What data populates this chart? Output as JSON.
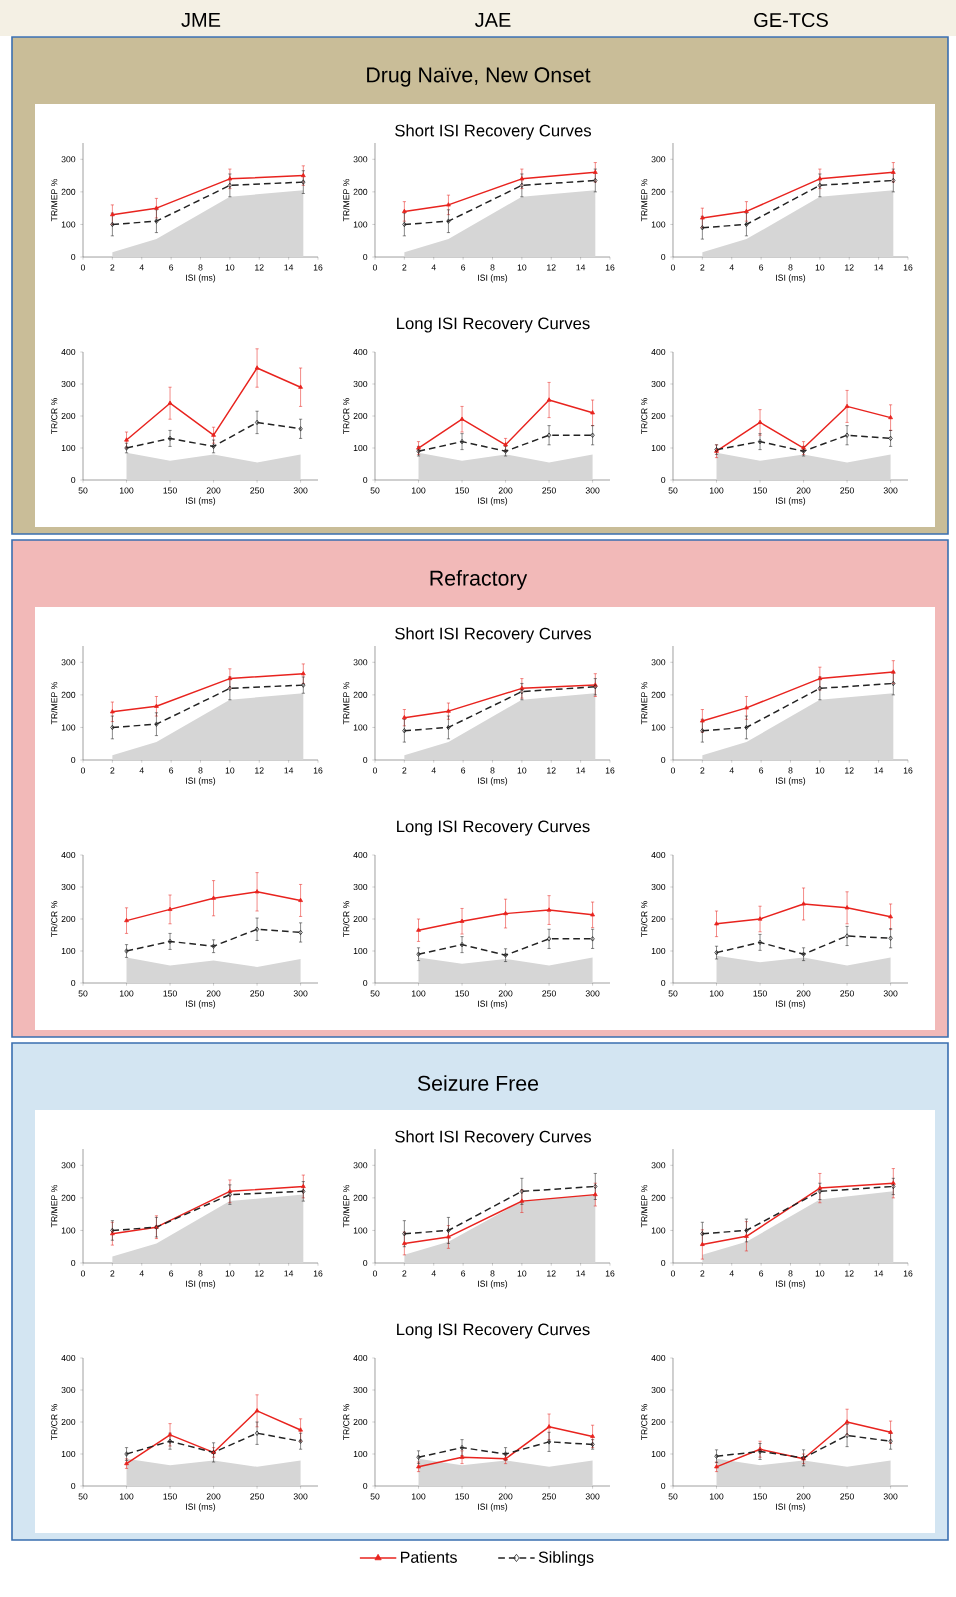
{
  "chart_data": [
    {
      "type": "line",
      "annotations": [
        "JME"
      ],
      "x": [
        2,
        5,
        10,
        15
      ],
      "xlim": [
        0,
        16
      ],
      "xticks": [
        0,
        2,
        4,
        6,
        8,
        10,
        12,
        14,
        16
      ],
      "ylim": [
        0,
        350
      ],
      "yticks": [
        0,
        100,
        200,
        300
      ],
      "xlabel": "ISI (ms)",
      "ylabel": "TR/MEP %",
      "series": [
        {
          "type": "area",
          "color": "#d6d6d6",
          "values": [
            15,
            55,
            185,
            205
          ]
        },
        {
          "color": "#e8231e",
          "marker": "triangle",
          "line_style": "solid",
          "values": [
            130,
            150,
            240,
            250
          ],
          "errors": [
            30,
            30,
            30,
            30
          ]
        },
        {
          "color": "#222222",
          "marker": "diamond",
          "line_style": "dashed",
          "values": [
            100,
            110,
            220,
            230
          ],
          "errors": [
            35,
            35,
            35,
            35
          ]
        }
      ]
    },
    {
      "type": "line",
      "title": "Short ISI Recovery Curves",
      "annotations": [
        "JAE",
        "Drug Naïve, New Onset"
      ],
      "x": [
        2,
        5,
        10,
        15
      ],
      "xlim": [
        0,
        16
      ],
      "xticks": [
        0,
        2,
        4,
        6,
        8,
        10,
        12,
        14,
        16
      ],
      "ylim": [
        0,
        350
      ],
      "yticks": [
        0,
        100,
        200,
        300
      ],
      "xlabel": "ISI (ms)",
      "ylabel": "TR/MEP %",
      "series": [
        {
          "type": "area",
          "color": "#d6d6d6",
          "values": [
            15,
            55,
            185,
            205
          ]
        },
        {
          "color": "#e8231e",
          "marker": "triangle",
          "line_style": "solid",
          "values": [
            140,
            160,
            240,
            260
          ],
          "errors": [
            30,
            30,
            30,
            30
          ]
        },
        {
          "color": "#222222",
          "marker": "diamond",
          "line_style": "dashed",
          "values": [
            100,
            110,
            220,
            235
          ],
          "errors": [
            35,
            35,
            35,
            35
          ]
        }
      ]
    },
    {
      "type": "line",
      "annotations": [
        "GE-TCS"
      ],
      "x": [
        2,
        5,
        10,
        15
      ],
      "xlim": [
        0,
        16
      ],
      "xticks": [
        0,
        2,
        4,
        6,
        8,
        10,
        12,
        14,
        16
      ],
      "ylim": [
        0,
        350
      ],
      "yticks": [
        0,
        100,
        200,
        300
      ],
      "xlabel": "ISI (ms)",
      "ylabel": "TR/MEP %",
      "series": [
        {
          "type": "area",
          "color": "#d6d6d6",
          "values": [
            15,
            55,
            185,
            205
          ]
        },
        {
          "color": "#e8231e",
          "marker": "triangle",
          "line_style": "solid",
          "values": [
            120,
            140,
            240,
            260
          ],
          "errors": [
            30,
            30,
            30,
            30
          ]
        },
        {
          "color": "#222222",
          "marker": "diamond",
          "line_style": "dashed",
          "values": [
            90,
            100,
            220,
            235
          ],
          "errors": [
            35,
            35,
            35,
            35
          ]
        }
      ]
    },
    {
      "type": "line",
      "x": [
        100,
        150,
        200,
        250,
        300
      ],
      "xlim": [
        50,
        320
      ],
      "xticks": [
        50,
        100,
        150,
        200,
        250,
        300
      ],
      "ylim": [
        0,
        400
      ],
      "yticks": [
        0,
        100,
        200,
        300,
        400
      ],
      "xlabel": "ISI (ms)",
      "ylabel": "TR/CR %",
      "series": [
        {
          "type": "area",
          "color": "#d6d6d6",
          "values": [
            85,
            60,
            80,
            55,
            80
          ]
        },
        {
          "color": "#e8231e",
          "marker": "triangle",
          "line_style": "solid",
          "values": [
            125,
            240,
            140,
            350,
            290
          ],
          "errors": [
            25,
            50,
            25,
            60,
            60
          ]
        },
        {
          "color": "#222222",
          "marker": "diamond",
          "line_style": "dashed",
          "values": [
            100,
            130,
            105,
            180,
            160
          ],
          "errors": [
            15,
            25,
            20,
            35,
            30
          ]
        }
      ]
    },
    {
      "type": "line",
      "title": "Long ISI Recovery Curves",
      "x": [
        100,
        150,
        200,
        250,
        300
      ],
      "xlim": [
        50,
        320
      ],
      "xticks": [
        50,
        100,
        150,
        200,
        250,
        300
      ],
      "ylim": [
        0,
        400
      ],
      "yticks": [
        0,
        100,
        200,
        300,
        400
      ],
      "xlabel": "ISI (ms)",
      "ylabel": "TR/CR %",
      "series": [
        {
          "type": "area",
          "color": "#d6d6d6",
          "values": [
            85,
            60,
            80,
            55,
            80
          ]
        },
        {
          "color": "#e8231e",
          "marker": "triangle",
          "line_style": "solid",
          "values": [
            100,
            190,
            110,
            250,
            210
          ],
          "errors": [
            20,
            40,
            20,
            55,
            40
          ]
        },
        {
          "color": "#222222",
          "marker": "diamond",
          "line_style": "dashed",
          "values": [
            90,
            120,
            90,
            140,
            140
          ],
          "errors": [
            15,
            25,
            15,
            30,
            30
          ]
        }
      ]
    },
    {
      "type": "line",
      "x": [
        100,
        150,
        200,
        250,
        300
      ],
      "xlim": [
        50,
        320
      ],
      "xticks": [
        50,
        100,
        150,
        200,
        250,
        300
      ],
      "ylim": [
        0,
        400
      ],
      "yticks": [
        0,
        100,
        200,
        300,
        400
      ],
      "xlabel": "ISI (ms)",
      "ylabel": "TR/CR %",
      "series": [
        {
          "type": "area",
          "color": "#d6d6d6",
          "values": [
            85,
            60,
            80,
            55,
            80
          ]
        },
        {
          "color": "#e8231e",
          "marker": "triangle",
          "line_style": "solid",
          "values": [
            90,
            180,
            100,
            230,
            195
          ],
          "errors": [
            20,
            40,
            20,
            50,
            40
          ]
        },
        {
          "color": "#222222",
          "marker": "diamond",
          "line_style": "dashed",
          "values": [
            95,
            120,
            90,
            140,
            130
          ],
          "errors": [
            15,
            25,
            15,
            30,
            25
          ]
        }
      ]
    },
    {
      "type": "line",
      "x": [
        2,
        5,
        10,
        15
      ],
      "xlim": [
        0,
        16
      ],
      "xticks": [
        0,
        2,
        4,
        6,
        8,
        10,
        12,
        14,
        16
      ],
      "ylim": [
        0,
        350
      ],
      "yticks": [
        0,
        100,
        200,
        300
      ],
      "xlabel": "ISI (ms)",
      "ylabel": "TR/MEP %",
      "series": [
        {
          "type": "area",
          "color": "#d6d6d6",
          "values": [
            15,
            55,
            185,
            205
          ]
        },
        {
          "color": "#e8231e",
          "marker": "triangle",
          "line_style": "solid",
          "values": [
            148,
            165,
            250,
            265
          ],
          "errors": [
            30,
            30,
            30,
            30
          ]
        },
        {
          "color": "#222222",
          "marker": "diamond",
          "line_style": "dashed",
          "values": [
            100,
            110,
            220,
            230
          ],
          "errors": [
            35,
            35,
            35,
            25
          ]
        }
      ]
    },
    {
      "type": "line",
      "title": "Short ISI Recovery Curves",
      "annotations": [
        "Refractory"
      ],
      "x": [
        2,
        5,
        10,
        15
      ],
      "xlim": [
        0,
        16
      ],
      "xticks": [
        0,
        2,
        4,
        6,
        8,
        10,
        12,
        14,
        16
      ],
      "ylim": [
        0,
        350
      ],
      "yticks": [
        0,
        100,
        200,
        300
      ],
      "xlabel": "ISI (ms)",
      "ylabel": "TR/MEP %",
      "series": [
        {
          "type": "area",
          "color": "#d6d6d6",
          "values": [
            15,
            55,
            185,
            205
          ]
        },
        {
          "color": "#e8231e",
          "marker": "triangle",
          "line_style": "solid",
          "values": [
            130,
            150,
            220,
            230
          ],
          "errors": [
            25,
            25,
            30,
            35
          ]
        },
        {
          "color": "#222222",
          "marker": "diamond",
          "line_style": "dashed",
          "values": [
            90,
            100,
            210,
            225
          ],
          "errors": [
            35,
            35,
            25,
            25
          ]
        }
      ]
    },
    {
      "type": "line",
      "x": [
        2,
        5,
        10,
        15
      ],
      "xlim": [
        0,
        16
      ],
      "xticks": [
        0,
        2,
        4,
        6,
        8,
        10,
        12,
        14,
        16
      ],
      "ylim": [
        0,
        350
      ],
      "yticks": [
        0,
        100,
        200,
        300
      ],
      "xlabel": "ISI (ms)",
      "ylabel": "TR/MEP %",
      "series": [
        {
          "type": "area",
          "color": "#d6d6d6",
          "values": [
            15,
            55,
            185,
            205
          ]
        },
        {
          "color": "#e8231e",
          "marker": "triangle",
          "line_style": "solid",
          "values": [
            120,
            160,
            250,
            270
          ],
          "errors": [
            35,
            35,
            35,
            35
          ]
        },
        {
          "color": "#222222",
          "marker": "diamond",
          "line_style": "dashed",
          "values": [
            90,
            100,
            220,
            235
          ],
          "errors": [
            35,
            35,
            35,
            35
          ]
        }
      ]
    },
    {
      "type": "line",
      "x": [
        100,
        150,
        200,
        250,
        300
      ],
      "xlim": [
        50,
        320
      ],
      "xticks": [
        50,
        100,
        150,
        200,
        250,
        300
      ],
      "ylim": [
        0,
        400
      ],
      "yticks": [
        0,
        100,
        200,
        300,
        400
      ],
      "xlabel": "ISI (ms)",
      "ylabel": "TR/CR %",
      "series": [
        {
          "type": "area",
          "color": "#d6d6d6",
          "values": [
            80,
            55,
            70,
            50,
            75
          ]
        },
        {
          "color": "#e8231e",
          "marker": "triangle",
          "line_style": "solid",
          "values": [
            195,
            230,
            265,
            285,
            258
          ],
          "errors": [
            40,
            45,
            55,
            60,
            50
          ]
        },
        {
          "color": "#222222",
          "marker": "diamond",
          "line_style": "dashed",
          "values": [
            100,
            130,
            115,
            168,
            158
          ],
          "errors": [
            20,
            25,
            20,
            35,
            30
          ]
        }
      ]
    },
    {
      "type": "line",
      "title": "Long ISI Recovery Curves",
      "x": [
        100,
        150,
        200,
        250,
        300
      ],
      "xlim": [
        50,
        320
      ],
      "xticks": [
        50,
        100,
        150,
        200,
        250,
        300
      ],
      "ylim": [
        0,
        400
      ],
      "yticks": [
        0,
        100,
        200,
        300,
        400
      ],
      "xlabel": "ISI (ms)",
      "ylabel": "TR/CR %",
      "series": [
        {
          "type": "area",
          "color": "#d6d6d6",
          "values": [
            80,
            60,
            75,
            55,
            80
          ]
        },
        {
          "color": "#e8231e",
          "marker": "triangle",
          "line_style": "solid",
          "values": [
            165,
            193,
            217,
            228,
            213
          ],
          "errors": [
            35,
            40,
            45,
            45,
            40
          ]
        },
        {
          "color": "#222222",
          "marker": "diamond",
          "line_style": "dashed",
          "values": [
            90,
            120,
            87,
            138,
            138
          ],
          "errors": [
            20,
            25,
            20,
            30,
            30
          ]
        }
      ]
    },
    {
      "type": "line",
      "x": [
        100,
        150,
        200,
        250,
        300
      ],
      "xlim": [
        50,
        320
      ],
      "xticks": [
        50,
        100,
        150,
        200,
        250,
        300
      ],
      "ylim": [
        0,
        400
      ],
      "yticks": [
        0,
        100,
        200,
        300,
        400
      ],
      "xlabel": "ISI (ms)",
      "ylabel": "TR/CR %",
      "series": [
        {
          "type": "area",
          "color": "#d6d6d6",
          "values": [
            85,
            65,
            80,
            55,
            80
          ]
        },
        {
          "color": "#e8231e",
          "marker": "triangle",
          "line_style": "solid",
          "values": [
            185,
            200,
            247,
            235,
            207
          ],
          "errors": [
            40,
            40,
            50,
            50,
            40
          ]
        },
        {
          "color": "#222222",
          "marker": "diamond",
          "line_style": "dashed",
          "values": [
            95,
            127,
            90,
            147,
            140
          ],
          "errors": [
            20,
            25,
            20,
            30,
            30
          ]
        }
      ]
    },
    {
      "type": "line",
      "x": [
        2,
        5,
        10,
        15
      ],
      "xlim": [
        0,
        16
      ],
      "xticks": [
        0,
        2,
        4,
        6,
        8,
        10,
        12,
        14,
        16
      ],
      "ylim": [
        0,
        350
      ],
      "yticks": [
        0,
        100,
        200,
        300
      ],
      "xlabel": "ISI (ms)",
      "ylabel": "TR/MEP %",
      "series": [
        {
          "type": "area",
          "color": "#d6d6d6",
          "values": [
            20,
            60,
            190,
            210
          ]
        },
        {
          "color": "#e8231e",
          "marker": "triangle",
          "line_style": "solid",
          "values": [
            90,
            110,
            220,
            235
          ],
          "errors": [
            35,
            35,
            35,
            35
          ]
        },
        {
          "color": "#222222",
          "marker": "diamond",
          "line_style": "dashed",
          "values": [
            100,
            110,
            210,
            220
          ],
          "errors": [
            30,
            30,
            30,
            30
          ]
        }
      ]
    },
    {
      "type": "line",
      "title": "Short ISI Recovery Curves",
      "annotations": [
        "Seizure Free"
      ],
      "x": [
        2,
        5,
        10,
        15
      ],
      "xlim": [
        0,
        16
      ],
      "xticks": [
        0,
        2,
        4,
        6,
        8,
        10,
        12,
        14,
        16
      ],
      "ylim": [
        0,
        350
      ],
      "yticks": [
        0,
        100,
        200,
        300
      ],
      "xlabel": "ISI (ms)",
      "ylabel": "TR/MEP %",
      "series": [
        {
          "type": "area",
          "color": "#d6d6d6",
          "values": [
            25,
            65,
            190,
            210
          ]
        },
        {
          "color": "#e8231e",
          "marker": "triangle",
          "line_style": "solid",
          "values": [
            60,
            80,
            190,
            210
          ],
          "errors": [
            35,
            35,
            35,
            35
          ]
        },
        {
          "color": "#222222",
          "marker": "diamond",
          "line_style": "dashed",
          "values": [
            90,
            100,
            220,
            235
          ],
          "errors": [
            40,
            40,
            40,
            40
          ]
        }
      ]
    },
    {
      "type": "line",
      "x": [
        2,
        5,
        10,
        15
      ],
      "xlim": [
        0,
        16
      ],
      "xticks": [
        0,
        2,
        4,
        6,
        8,
        10,
        12,
        14,
        16
      ],
      "ylim": [
        0,
        350
      ],
      "yticks": [
        0,
        100,
        200,
        300
      ],
      "xlabel": "ISI (ms)",
      "ylabel": "TR/MEP %",
      "series": [
        {
          "type": "area",
          "color": "#d6d6d6",
          "values": [
            25,
            65,
            195,
            220
          ]
        },
        {
          "color": "#e8231e",
          "marker": "triangle",
          "line_style": "solid",
          "values": [
            57,
            82,
            230,
            245
          ],
          "errors": [
            45,
            45,
            45,
            45
          ]
        },
        {
          "color": "#222222",
          "marker": "diamond",
          "line_style": "dashed",
          "values": [
            90,
            100,
            220,
            235
          ],
          "errors": [
            35,
            35,
            25,
            25
          ]
        }
      ]
    },
    {
      "type": "line",
      "x": [
        100,
        150,
        200,
        250,
        300
      ],
      "xlim": [
        50,
        320
      ],
      "xticks": [
        50,
        100,
        150,
        200,
        250,
        300
      ],
      "ylim": [
        0,
        400
      ],
      "yticks": [
        0,
        100,
        200,
        300,
        400
      ],
      "xlabel": "ISI (ms)",
      "ylabel": "TR/CR %",
      "series": [
        {
          "type": "area",
          "color": "#d6d6d6",
          "values": [
            85,
            65,
            80,
            60,
            80
          ]
        },
        {
          "color": "#e8231e",
          "marker": "triangle",
          "line_style": "solid",
          "values": [
            70,
            160,
            105,
            235,
            175
          ],
          "errors": [
            15,
            35,
            15,
            50,
            35
          ]
        },
        {
          "color": "#222222",
          "marker": "diamond",
          "line_style": "dashed",
          "values": [
            100,
            140,
            105,
            165,
            140
          ],
          "errors": [
            20,
            25,
            30,
            35,
            25
          ]
        }
      ]
    },
    {
      "type": "line",
      "title": "Long ISI Recovery Curves",
      "x": [
        100,
        150,
        200,
        250,
        300
      ],
      "xlim": [
        50,
        320
      ],
      "xticks": [
        50,
        100,
        150,
        200,
        250,
        300
      ],
      "ylim": [
        0,
        400
      ],
      "yticks": [
        0,
        100,
        200,
        300,
        400
      ],
      "xlabel": "ISI (ms)",
      "ylabel": "TR/CR %",
      "series": [
        {
          "type": "area",
          "color": "#d6d6d6",
          "values": [
            85,
            65,
            80,
            60,
            80
          ]
        },
        {
          "color": "#e8231e",
          "marker": "triangle",
          "line_style": "solid",
          "values": [
            60,
            90,
            85,
            185,
            155
          ],
          "errors": [
            15,
            20,
            15,
            40,
            35
          ]
        },
        {
          "color": "#222222",
          "marker": "diamond",
          "line_style": "dashed",
          "values": [
            90,
            120,
            100,
            138,
            130
          ],
          "errors": [
            20,
            25,
            20,
            30,
            15
          ]
        }
      ]
    },
    {
      "type": "line",
      "legend": "bottom",
      "x": [
        100,
        150,
        200,
        250,
        300
      ],
      "xlim": [
        50,
        320
      ],
      "xticks": [
        50,
        100,
        150,
        200,
        250,
        300
      ],
      "ylim": [
        0,
        400
      ],
      "yticks": [
        0,
        100,
        200,
        300,
        400
      ],
      "xlabel": "ISI (ms)",
      "ylabel": "TR/CR %",
      "series": [
        {
          "type": "area",
          "color": "#d6d6d6",
          "values": [
            85,
            65,
            80,
            60,
            80
          ]
        },
        {
          "name": "Patients",
          "color": "#e8231e",
          "marker": "triangle",
          "line_style": "solid",
          "values": [
            60,
            115,
            85,
            200,
            168
          ],
          "errors": [
            15,
            25,
            15,
            40,
            35
          ]
        },
        {
          "name": "Siblings",
          "color": "#222222",
          "marker": "diamond",
          "line_style": "dashed",
          "values": [
            93,
            108,
            88,
            158,
            140
          ],
          "errors": [
            20,
            25,
            25,
            35,
            25
          ]
        }
      ]
    }
  ]
}
